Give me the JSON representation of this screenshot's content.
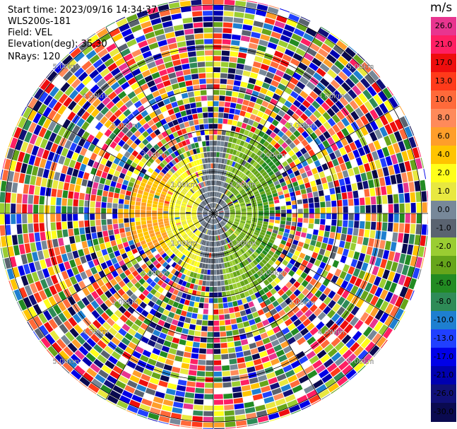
{
  "info": {
    "start_time": "Start time: 2023/09/16 14:34:37",
    "site": "WLS200s-181",
    "field": "Field: VEL",
    "elevation": "Elevation(deg): 35.30",
    "nrays": "NRays: 120"
  },
  "chart_data": {
    "type": "ppi",
    "field": "VEL",
    "rays": 120,
    "range_rings_km": [
      1.0,
      2.0,
      3.0,
      4.0,
      5.0
    ],
    "range_ring_labels": [
      "1.00km",
      "2.00km",
      "3.00km",
      "4.00km",
      "5.00km"
    ],
    "colorbar": {
      "unit": "m/s",
      "ticks": [
        "26.0",
        "21.0",
        "17.0",
        "13.0",
        "10.0",
        "8.0",
        "6.0",
        "4.0",
        "2.0",
        "1.0",
        "0.0",
        "-1.0",
        "-2.0",
        "-4.0",
        "-6.0",
        "-8.0",
        "-10.0",
        "-13.0",
        "-17.0",
        "-21.0",
        "-26.0",
        "-30.0"
      ],
      "colors": [
        "#e8358f",
        "#ff1f63",
        "#ee0d0d",
        "#ff3a1a",
        "#ff6a3a",
        "#ff8a5a",
        "#ff9e2a",
        "#ffc400",
        "#ffff1a",
        "#e8e840",
        "#778899",
        "#5a6370",
        "#9acd32",
        "#66a51a",
        "#228b22",
        "#2e8b57",
        "#1e7fd0",
        "#2040ff",
        "#0000e8",
        "#0000b0",
        "#101078",
        "#0a0a50"
      ]
    }
  }
}
